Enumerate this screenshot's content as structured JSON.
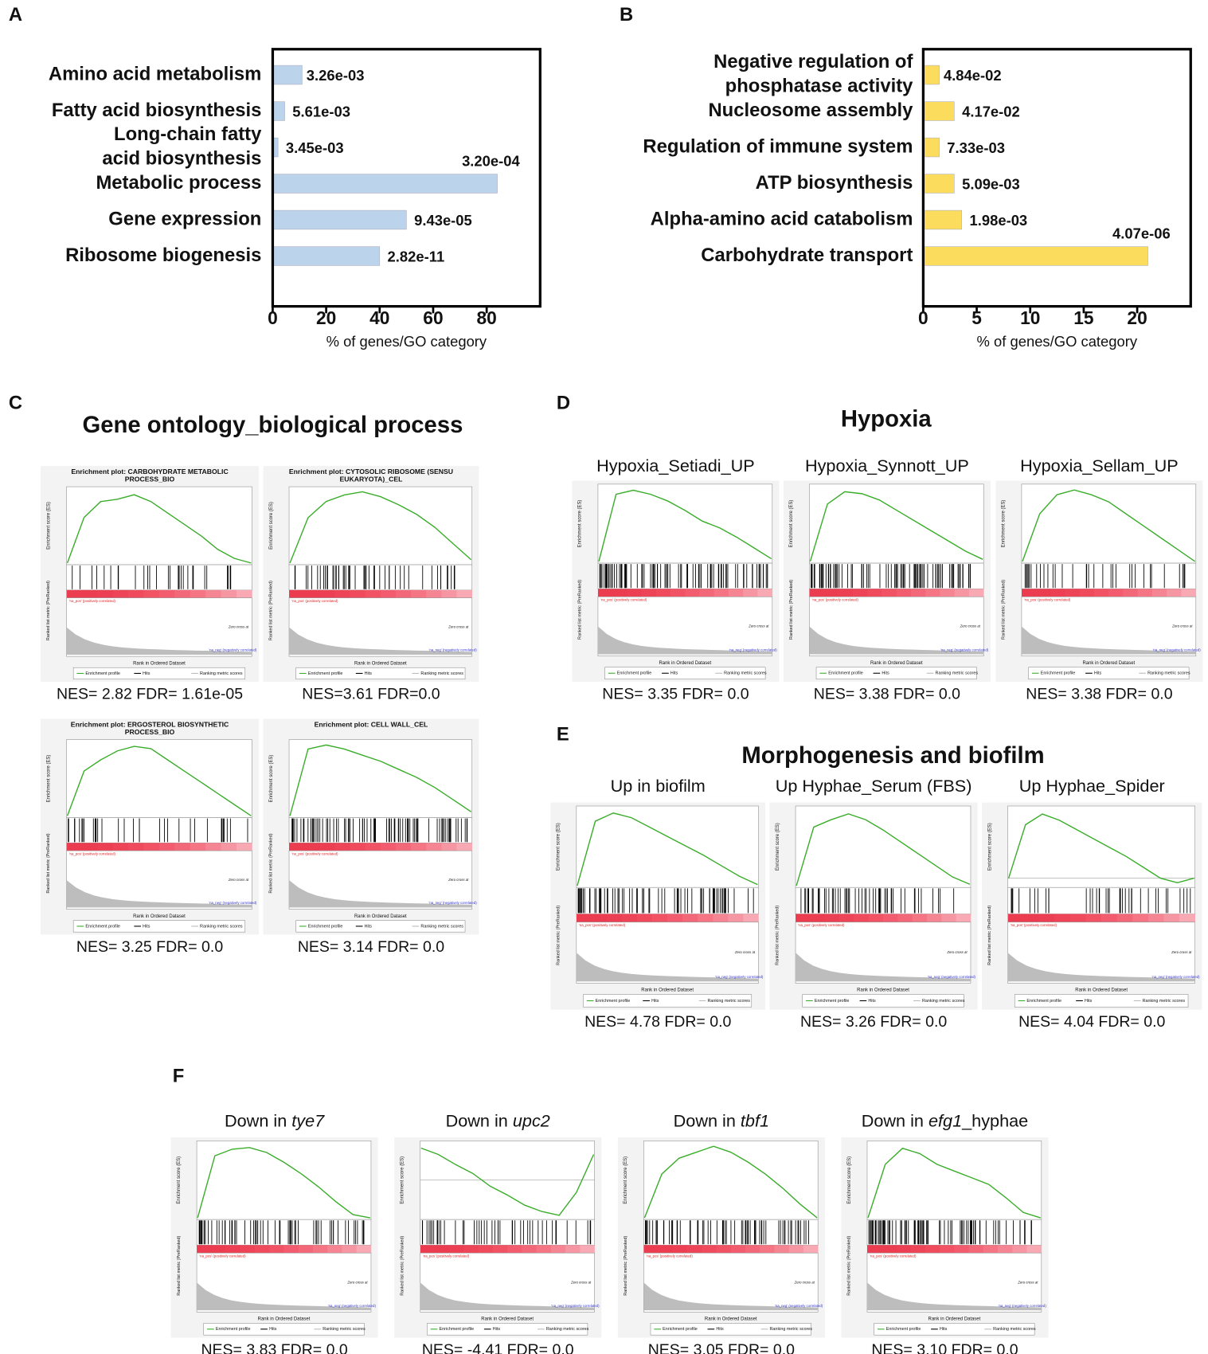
{
  "chart_data": [
    {
      "type": "hbar",
      "panel_label": "A",
      "categories": [
        [
          "Amino acid metabolism"
        ],
        [
          "Fatty acid biosynthesis"
        ],
        [
          "Long-chain fatty",
          "acid biosynthesis"
        ],
        [
          "Metabolic process"
        ],
        [
          "Gene expression"
        ],
        [
          "Ribosome biogenesis"
        ]
      ],
      "values": [
        11,
        4.5,
        2,
        84,
        50,
        40
      ],
      "p_values": [
        "3.26e-03",
        "5.61e-03",
        "3.45e-03",
        "3.20e-04",
        "9.43e-05",
        "2.82e-11"
      ],
      "color": "#bcd3ec",
      "xlim": [
        0,
        100
      ],
      "xticks": [
        0,
        20,
        40,
        60,
        80
      ],
      "xlabel": "% of genes/GO category"
    },
    {
      "type": "hbar",
      "panel_label": "B",
      "categories": [
        [
          "Negative regulation of",
          "phosphatase activity"
        ],
        [
          "Nucleosome assembly"
        ],
        [
          "Regulation of immune system"
        ],
        [
          "ATP biosynthesis"
        ],
        [
          "Alpha-amino acid catabolism"
        ],
        [
          "Carbohydrate transport"
        ]
      ],
      "values": [
        1.5,
        2.9,
        1.5,
        2.9,
        3.6,
        21
      ],
      "p_values": [
        "4.84e-02",
        "4.17e-02",
        "7.33e-03",
        "5.09e-03",
        "1.98e-03",
        "4.07e-06"
      ],
      "color": "#fbdc5c",
      "xlim": [
        0,
        25
      ],
      "xticks": [
        0,
        5,
        10,
        15,
        20
      ],
      "xlabel": "% of genes/GO category"
    }
  ],
  "gsea_labels": {
    "es_axis": "Enrichment score (ES)",
    "rank_axis": "Ranked list metric (PreRanked)",
    "x_axis": "Rank in Ordered Dataset",
    "pos": "'na_pos' (positively correlated)",
    "neg": "'na_neg' (negatively correlated)",
    "zero": "Zero cross at",
    "legend": [
      "Enrichment profile",
      "Hits",
      "Ranking metric scores"
    ]
  },
  "gsea_sections": [
    {
      "label": "C",
      "title": "Gene ontology_biological process",
      "plots": [
        {
          "title": [
            "Enrichment plot: CARBOHYDRATE METABOLIC",
            "PROCESS_BIO"
          ],
          "stats": "NES= 2.82 FDR= 1.61e-05",
          "es_ylim": [
            0,
            0.32
          ],
          "es": [
            0,
            0.2,
            0.27,
            0.28,
            0.3,
            0.27,
            0.22,
            0.17,
            0.12,
            0.06,
            0.02,
            0
          ]
        },
        {
          "title": [
            "Enrichment plot: CYTOSOLIC RIBOSOME (SENSU",
            "EUKARYOTA)_CEL"
          ],
          "stats": "NES=3.61 FDR=0.0",
          "es_ylim": [
            0,
            0.45
          ],
          "es": [
            0,
            0.28,
            0.38,
            0.42,
            0.44,
            0.41,
            0.36,
            0.3,
            0.22,
            0.12,
            0.02
          ]
        },
        {
          "title": [
            "Enrichment plot: ERGOSTEROL BIOSYNTHETIC",
            "PROCESS_BIO"
          ],
          "stats": "NES= 3.25 FDR= 0.0",
          "es_ylim": [
            0,
            0.65
          ],
          "es": [
            0,
            0.4,
            0.5,
            0.58,
            0.62,
            0.6,
            0.5,
            0.4,
            0.3,
            0.2,
            0.1,
            0
          ]
        },
        {
          "title": [
            "Enrichment plot: CELL WALL_CEL"
          ],
          "stats": "NES= 3.14 FDR= 0.0",
          "es_ylim": [
            0,
            0.36
          ],
          "es": [
            0,
            0.33,
            0.35,
            0.33,
            0.3,
            0.27,
            0.23,
            0.19,
            0.14,
            0.08,
            0.02
          ]
        }
      ]
    },
    {
      "label": "D",
      "title": "Hypoxia",
      "plots": [
        {
          "heading": [
            {
              "text": "Hypoxia_Setiadi_UP"
            }
          ],
          "stats": "NES= 3.35 FDR= 0.0",
          "es_ylim": [
            0,
            0.55
          ],
          "es": [
            0,
            0.5,
            0.53,
            0.5,
            0.45,
            0.38,
            0.3,
            0.25,
            0.18,
            0.1,
            0.02
          ]
        },
        {
          "heading": [
            {
              "text": "Hypoxia_Synnott_UP"
            }
          ],
          "stats": "NES= 3.38 FDR= 0.0",
          "es_ylim": [
            0,
            0.36
          ],
          "es": [
            0,
            0.28,
            0.34,
            0.33,
            0.3,
            0.25,
            0.2,
            0.15,
            0.1,
            0.05,
            0.01
          ]
        },
        {
          "heading": [
            {
              "text": "Hypoxia_Sellam_UP"
            }
          ],
          "stats": "NES= 3.38 FDR= 0.0",
          "es_ylim": [
            0,
            0.31
          ],
          "es": [
            0,
            0.2,
            0.28,
            0.3,
            0.28,
            0.25,
            0.2,
            0.15,
            0.1,
            0.05,
            0
          ]
        }
      ]
    },
    {
      "label": "E",
      "title": "Morphogenesis and biofilm",
      "plots": [
        {
          "heading": [
            {
              "text": "Up in biofilm"
            }
          ],
          "stats": "NES= 4.78 FDR= 0.0",
          "es_ylim": [
            0,
            0.65
          ],
          "es": [
            0,
            0.55,
            0.62,
            0.58,
            0.5,
            0.42,
            0.34,
            0.26,
            0.17,
            0.08,
            0.01
          ]
        },
        {
          "heading": [
            {
              "text": "Up Hyphae_Serum (FBS)"
            }
          ],
          "stats": "NES= 3.26 FDR= 0.0",
          "es_ylim": [
            0,
            0.52
          ],
          "es": [
            0,
            0.4,
            0.45,
            0.49,
            0.45,
            0.38,
            0.3,
            0.22,
            0.14,
            0.06,
            0.01
          ]
        },
        {
          "heading": [
            {
              "text": "Up Hyphae_Spider"
            }
          ],
          "stats": "NES= 4.04 FDR= 0.0",
          "es_ylim": [
            -0.05,
            0.45
          ],
          "es": [
            0,
            0.35,
            0.42,
            0.38,
            0.32,
            0.26,
            0.2,
            0.14,
            0.07,
            0,
            -0.03,
            0
          ]
        }
      ]
    },
    {
      "label": "F",
      "plots": [
        {
          "heading": [
            {
              "text": "Down in "
            },
            {
              "text": "tye7",
              "italic": true
            }
          ],
          "stats": "NES= 3.83 FDR= 0.0",
          "es_ylim": [
            0,
            0.45
          ],
          "es": [
            0,
            0.38,
            0.42,
            0.43,
            0.4,
            0.34,
            0.27,
            0.19,
            0.1,
            0.02,
            0
          ]
        },
        {
          "heading": [
            {
              "text": "Down in "
            },
            {
              "text": "upc2",
              "italic": true
            }
          ],
          "stats": "NES= -4.41 FDR= 0.0",
          "es_ylim": [
            -0.3,
            0.28
          ],
          "es": [
            0.25,
            0.2,
            0.12,
            0.05,
            -0.05,
            -0.12,
            -0.2,
            -0.25,
            -0.28,
            -0.1,
            0.2
          ]
        },
        {
          "heading": [
            {
              "text": "Down in "
            },
            {
              "text": "tbf1",
              "italic": true
            }
          ],
          "stats": "NES= 3.05 FDR= 0.0",
          "es_ylim": [
            0,
            0.37
          ],
          "es": [
            0,
            0.22,
            0.3,
            0.33,
            0.36,
            0.33,
            0.28,
            0.22,
            0.15,
            0.07,
            0
          ]
        },
        {
          "heading": [
            {
              "text": "Down in "
            },
            {
              "text": "efg1",
              "italic": true
            },
            {
              "text": "_hyphae"
            }
          ],
          "stats": "NES= 3.10 FDR= 0.0",
          "es_ylim": [
            0,
            0.55
          ],
          "es": [
            0,
            0.4,
            0.52,
            0.48,
            0.4,
            0.35,
            0.3,
            0.25,
            0.15,
            0.04,
            0
          ]
        }
      ]
    }
  ]
}
